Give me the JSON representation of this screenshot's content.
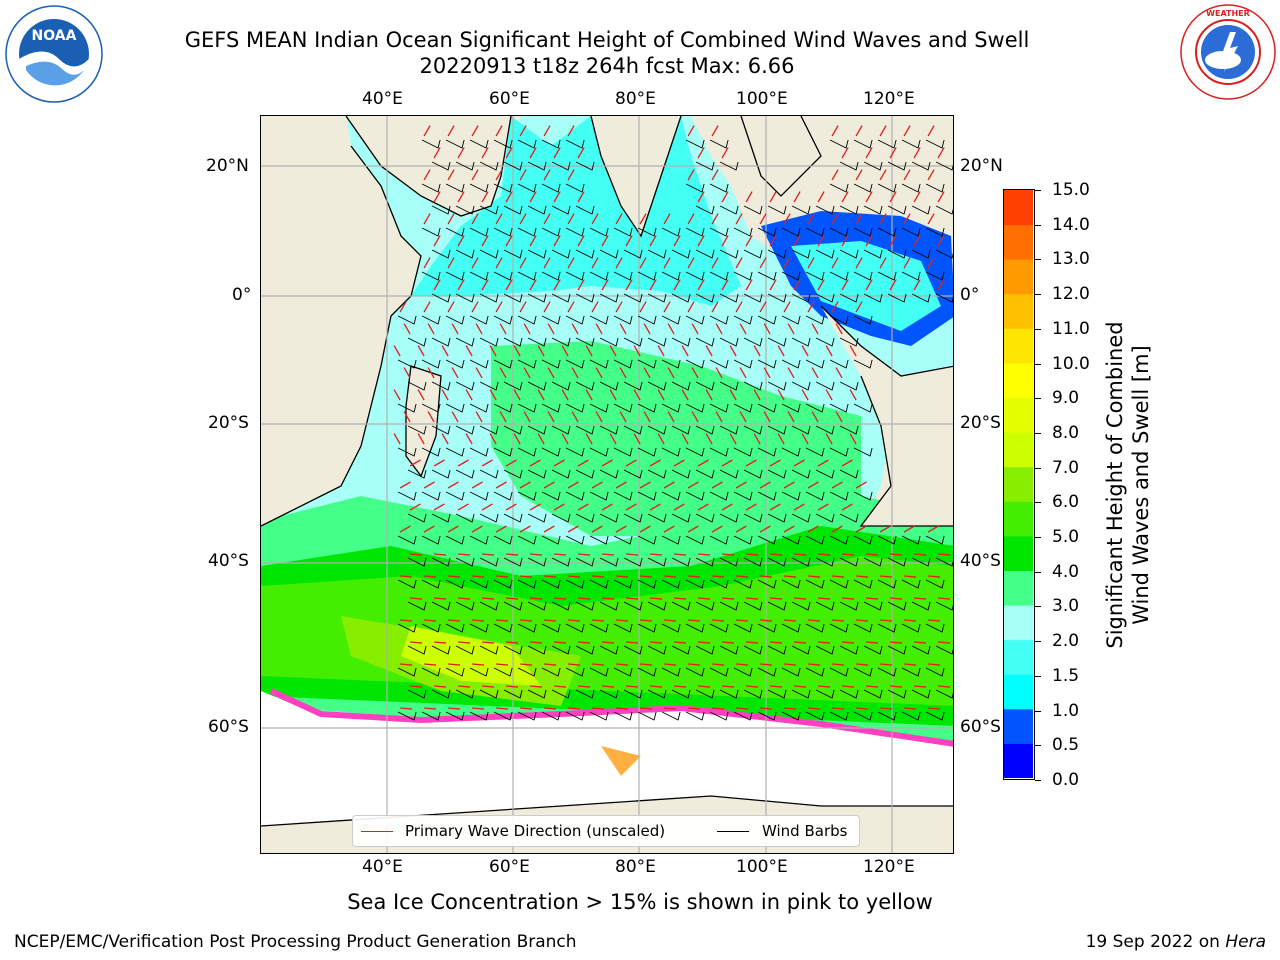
{
  "header": {
    "title_line1": "GEFS MEAN Indian Ocean Significant Height of Combined Wind Waves and Swell",
    "title_line2": "20220913 t18z 264h fcst   Max: 6.66"
  },
  "logos": {
    "left": {
      "name": "NOAA",
      "ring_text": "NATIONAL OCEANIC AND ATMOSPHERIC ADMINISTRATION",
      "bottom_text": "U.S. DEPARTMENT OF COMMERCE",
      "color": "#1a5fb4"
    },
    "right": {
      "name": "NATIONAL WEATHER SERVICE",
      "color": "#d92020"
    }
  },
  "map": {
    "lon_labels_top": [
      "40°E",
      "60°E",
      "80°E",
      "100°E",
      "120°E"
    ],
    "lon_labels_bottom": [
      "40°E",
      "60°E",
      "80°E",
      "100°E",
      "120°E"
    ],
    "lat_labels_left": [
      "20°N",
      "0°",
      "20°S",
      "40°S",
      "60°S"
    ],
    "lat_labels_right": [
      "20°N",
      "0°",
      "20°S",
      "40°S",
      "60°S"
    ],
    "land_color": "#efecdc",
    "ice_note": "Sea Ice Concentration > 15% is shown in pink to yellow"
  },
  "legend": {
    "primary_wave": {
      "label": "Primary Wave Direction (unscaled)",
      "color": "#e02020"
    },
    "wind_barbs": {
      "label": "Wind Barbs",
      "color": "#000000"
    }
  },
  "colorbar": {
    "label_line1": "Significant Height of Combined",
    "label_line2": "Wind Waves and Swell [m]",
    "ticks": [
      "15.0",
      "14.0",
      "13.0",
      "12.0",
      "11.0",
      "10.0",
      "9.0",
      "8.0",
      "7.0",
      "6.0",
      "5.0",
      "4.0",
      "3.0",
      "2.0",
      "1.5",
      "1.0",
      "0.5",
      "0.0"
    ],
    "colors": [
      "#0000ff",
      "#0055ff",
      "#00ffff",
      "#44fff4",
      "#a8fff7",
      "#44ff88",
      "#00e600",
      "#44ee00",
      "#88ee00",
      "#ccff00",
      "#e6ff00",
      "#ffff00",
      "#ffe600",
      "#ffc000",
      "#ff9900",
      "#ff7000",
      "#ff4000",
      "#ff0000"
    ]
  },
  "footer": {
    "left": "NCEP/EMC/Verification Post Processing Product Generation Branch",
    "right_prefix": "19 Sep 2022 on ",
    "right_host": "Hera"
  }
}
